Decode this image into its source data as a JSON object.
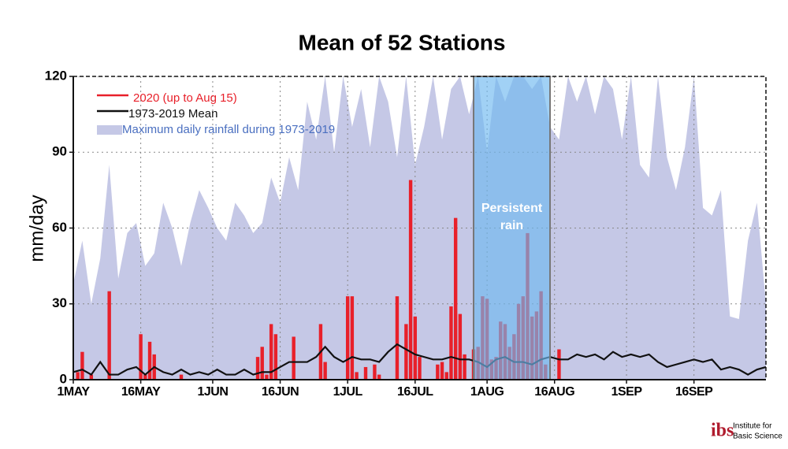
{
  "chart_data": {
    "type": "combo",
    "title": "Mean of 52 Stations",
    "y_label": "mm/day",
    "xlim": [
      0,
      154
    ],
    "ylim": [
      0,
      120
    ],
    "yticks": [
      0,
      30,
      60,
      90,
      120
    ],
    "xticks": [
      {
        "value": 0,
        "label": "1MAY"
      },
      {
        "value": 15,
        "label": "16MAY"
      },
      {
        "value": 31,
        "label": "1JUN"
      },
      {
        "value": 46,
        "label": "16JUN"
      },
      {
        "value": 61,
        "label": "1JUL"
      },
      {
        "value": 76,
        "label": "16JUL"
      },
      {
        "value": 92,
        "label": "1AUG"
      },
      {
        "value": 107,
        "label": "16AUG"
      },
      {
        "value": 123,
        "label": "1SEP"
      },
      {
        "value": 138,
        "label": "16SEP"
      }
    ],
    "grid": true,
    "legend": "top-left",
    "series": [
      {
        "name": "2020 (up to Aug 15)",
        "type": "bar",
        "color": "#e8202a",
        "x": [
          1,
          2,
          4,
          8,
          15,
          16,
          17,
          18,
          24,
          41,
          42,
          43,
          44,
          45,
          49,
          55,
          56,
          61,
          62,
          63,
          65,
          67,
          68,
          72,
          74,
          75,
          76,
          77,
          81,
          82,
          83,
          84,
          85,
          86,
          87,
          89,
          90,
          91,
          92,
          93,
          94,
          95,
          96,
          97,
          98,
          99,
          100,
          101,
          102,
          103,
          104,
          105,
          108
        ],
        "values": [
          3,
          11,
          2,
          35,
          18,
          2,
          15,
          10,
          2,
          9,
          13,
          2,
          22,
          18,
          17,
          22,
          7,
          33,
          33,
          3,
          5,
          6,
          2,
          33,
          22,
          79,
          25,
          9,
          6,
          7,
          3,
          29,
          64,
          26,
          10,
          12,
          13,
          33,
          32,
          8,
          9,
          23,
          22,
          13,
          18,
          30,
          33,
          58,
          25,
          27,
          35,
          6,
          12
        ]
      },
      {
        "name": "1973-2019 Mean",
        "type": "line",
        "color": "#111111",
        "x": [
          0,
          2,
          4,
          6,
          8,
          10,
          12,
          14,
          16,
          18,
          20,
          22,
          24,
          26,
          28,
          30,
          32,
          34,
          36,
          38,
          40,
          42,
          44,
          46,
          48,
          50,
          52,
          54,
          56,
          58,
          60,
          62,
          64,
          66,
          68,
          70,
          72,
          74,
          76,
          78,
          80,
          82,
          84,
          86,
          88,
          90,
          92,
          94,
          96,
          98,
          100,
          102,
          104,
          106,
          108,
          110,
          112,
          114,
          116,
          118,
          120,
          122,
          124,
          126,
          128,
          130,
          132,
          134,
          136,
          138,
          140,
          142,
          144,
          146,
          148,
          150,
          152,
          154
        ],
        "values": [
          3,
          4,
          2,
          7,
          2,
          2,
          4,
          5,
          2,
          5,
          3,
          2,
          4,
          2,
          3,
          2,
          4,
          2,
          2,
          4,
          2,
          3,
          3,
          5,
          7,
          7,
          7,
          9,
          13,
          9,
          7,
          9,
          8,
          8,
          7,
          11,
          14,
          12,
          10,
          9,
          8,
          8,
          9,
          8,
          8,
          7,
          5,
          8,
          9,
          7,
          7,
          6,
          8,
          9,
          8,
          8,
          10,
          9,
          10,
          8,
          11,
          9,
          10,
          9,
          10,
          7,
          5,
          6,
          7,
          8,
          7,
          8,
          4,
          5,
          4,
          2,
          4,
          5
        ]
      },
      {
        "name": "Maximum daily rainfall during 1973-2019",
        "type": "area",
        "color": "#c5c8e6",
        "x": [
          0,
          2,
          4,
          6,
          8,
          10,
          12,
          14,
          16,
          18,
          20,
          22,
          24,
          26,
          28,
          30,
          32,
          34,
          36,
          38,
          40,
          42,
          44,
          46,
          48,
          50,
          52,
          54,
          56,
          58,
          60,
          62,
          64,
          66,
          68,
          70,
          72,
          74,
          76,
          78,
          80,
          82,
          84,
          86,
          88,
          90,
          92,
          94,
          96,
          98,
          100,
          102,
          104,
          106,
          108,
          110,
          112,
          114,
          116,
          118,
          120,
          122,
          124,
          126,
          128,
          130,
          132,
          134,
          136,
          138,
          140,
          142,
          144,
          146,
          148,
          150,
          152,
          154
        ],
        "values": [
          38,
          55,
          30,
          48,
          85,
          40,
          58,
          62,
          45,
          50,
          70,
          60,
          45,
          62,
          75,
          68,
          60,
          55,
          70,
          65,
          58,
          62,
          80,
          70,
          88,
          75,
          110,
          95,
          120,
          90,
          120,
          100,
          115,
          92,
          120,
          110,
          88,
          120,
          85,
          100,
          120,
          95,
          115,
          120,
          105,
          120,
          90,
          120,
          110,
          120,
          120,
          115,
          120,
          100,
          95,
          120,
          110,
          120,
          105,
          120,
          115,
          95,
          120,
          85,
          80,
          120,
          88,
          75,
          92,
          120,
          68,
          65,
          75,
          25,
          24,
          55,
          70,
          30
        ]
      }
    ],
    "highlight": {
      "x": [
        89,
        106
      ],
      "label": "Persistent rain"
    },
    "logo": {
      "mark": "ibs",
      "text_1": "Institute for",
      "text_2": "Basic Science"
    }
  }
}
